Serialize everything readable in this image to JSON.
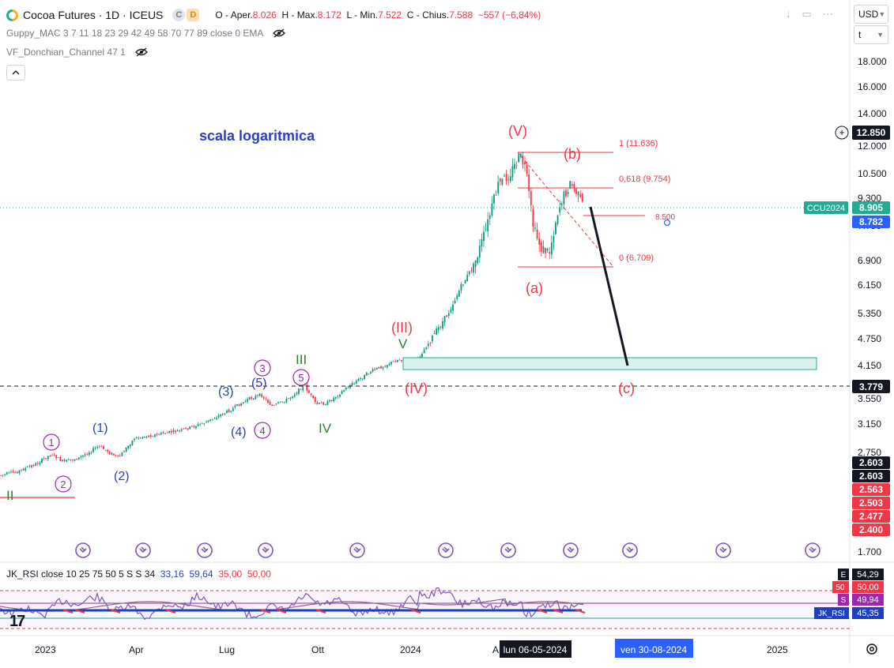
{
  "header": {
    "symbol_title": "Cocoa Futures · 1D · ICEUS",
    "badge_c": "C",
    "badge_d": "D",
    "ohlc": {
      "open_label": "O - Aper.",
      "open": "8.026",
      "high_label": "H - Max.",
      "high": "8.172",
      "low_label": "L - Min.",
      "low": "7.522",
      "close_label": "C - Chius.",
      "close": "7.588",
      "change": "−557 (−6,84%)"
    },
    "indicators": [
      {
        "label": "Guppy_MAC 3 7 11 18 23 29 42 49 58 70 77 89 close 0 EMA"
      },
      {
        "label": "VF_Donchian_Channel 47 1"
      }
    ]
  },
  "toolbar": {
    "currency": "USD",
    "unit": "t"
  },
  "colors": {
    "up": "#089981",
    "down": "#f23645",
    "annotation_blue": "#2a40c8",
    "annotation_green": "#2e7d32",
    "annotation_purple": "#9c27b0",
    "annotation_red": "#f23645",
    "box_fill": "#d9f2ee",
    "tag_teal": "#22ab94",
    "tag_blue": "#2962ff",
    "tag_red": "#f23645"
  },
  "price_axis": {
    "ticks": [
      "18.000",
      "16.000",
      "14.000",
      "12.000",
      "10.500",
      "9.300",
      "7.750",
      "6.900",
      "6.150",
      "5.350",
      "4.750",
      "4.150",
      "3.550",
      "3.150",
      "2.750",
      "1.700"
    ],
    "tags": [
      {
        "label": "12.850",
        "style": "dark"
      },
      {
        "label": "8.905",
        "style": "teal",
        "name_tag": "CCU2024"
      },
      {
        "label": "8.782",
        "style": "blue"
      },
      {
        "label": "3.779",
        "style": "dark"
      },
      {
        "label": "2.603",
        "style": "dark"
      },
      {
        "label": "2.603",
        "style": "dark"
      },
      {
        "label": "2.563",
        "style": "red"
      },
      {
        "label": "2.503",
        "style": "red"
      },
      {
        "label": "2.477",
        "style": "red"
      },
      {
        "label": "2.400",
        "style": "red"
      }
    ]
  },
  "time_axis": {
    "labels": [
      "2023",
      "Apr",
      "Lug",
      "Ott",
      "2024",
      "A",
      "2025"
    ],
    "cursor_label": "lun 06-05-2024",
    "range_label": "ven 30-08-2024"
  },
  "annotations": {
    "scale_note": "scala logaritmica",
    "fib": [
      {
        "label": "1 (11.636)"
      },
      {
        "label": "0,618 (9.754)"
      },
      {
        "label": "8.500"
      },
      {
        "label": "0 (6.709)"
      }
    ],
    "waves": {
      "V_red": "(V)",
      "III_red": "(III)",
      "IV_red": "(IV)",
      "b": "(b)",
      "a": "(a)",
      "c": "(c)",
      "V_green": "V",
      "III_green": "III",
      "IV_green": "IV",
      "II_green": "II",
      "w1_blue": "(1)",
      "w2_blue": "(2)",
      "w3_blue": "(3)",
      "w4_blue": "(4)",
      "w5_blue": "(5)",
      "c1": "1",
      "c2": "2",
      "c3": "3",
      "c4": "4",
      "c5": "5"
    }
  },
  "rsi": {
    "title": "JK_RSI close 10 25 75 50 5 S S 34",
    "values": [
      {
        "v": "33,16",
        "color": "#2a40c8"
      },
      {
        "v": "59,64",
        "color": "#2a40c8"
      },
      {
        "v": "35,00",
        "color": "#f23645"
      },
      {
        "v": "50,00",
        "color": "#f23645"
      }
    ],
    "axis_tags": [
      {
        "key": "E",
        "value": "54,29"
      },
      {
        "key": "50",
        "value": "50,00"
      },
      {
        "key": "S",
        "value": "49,94"
      },
      {
        "key": "JK_RSI",
        "value": "45,35"
      }
    ]
  }
}
